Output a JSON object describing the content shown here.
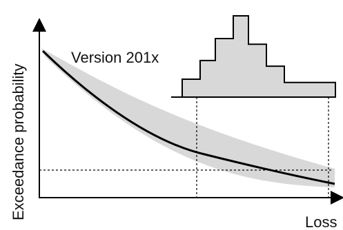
{
  "figure": {
    "y_axis_label": "Exceedance probability",
    "x_axis_label": "Loss",
    "version_label": "Version 201x"
  },
  "colors": {
    "band": "#d8d8d8",
    "curve": "#000000",
    "axis": "#000000",
    "guide_lines": "#000000"
  },
  "histogram": {
    "relative_heights": [
      0.22,
      0.45,
      0.72,
      1.0,
      0.65,
      0.38,
      0.18
    ]
  }
}
